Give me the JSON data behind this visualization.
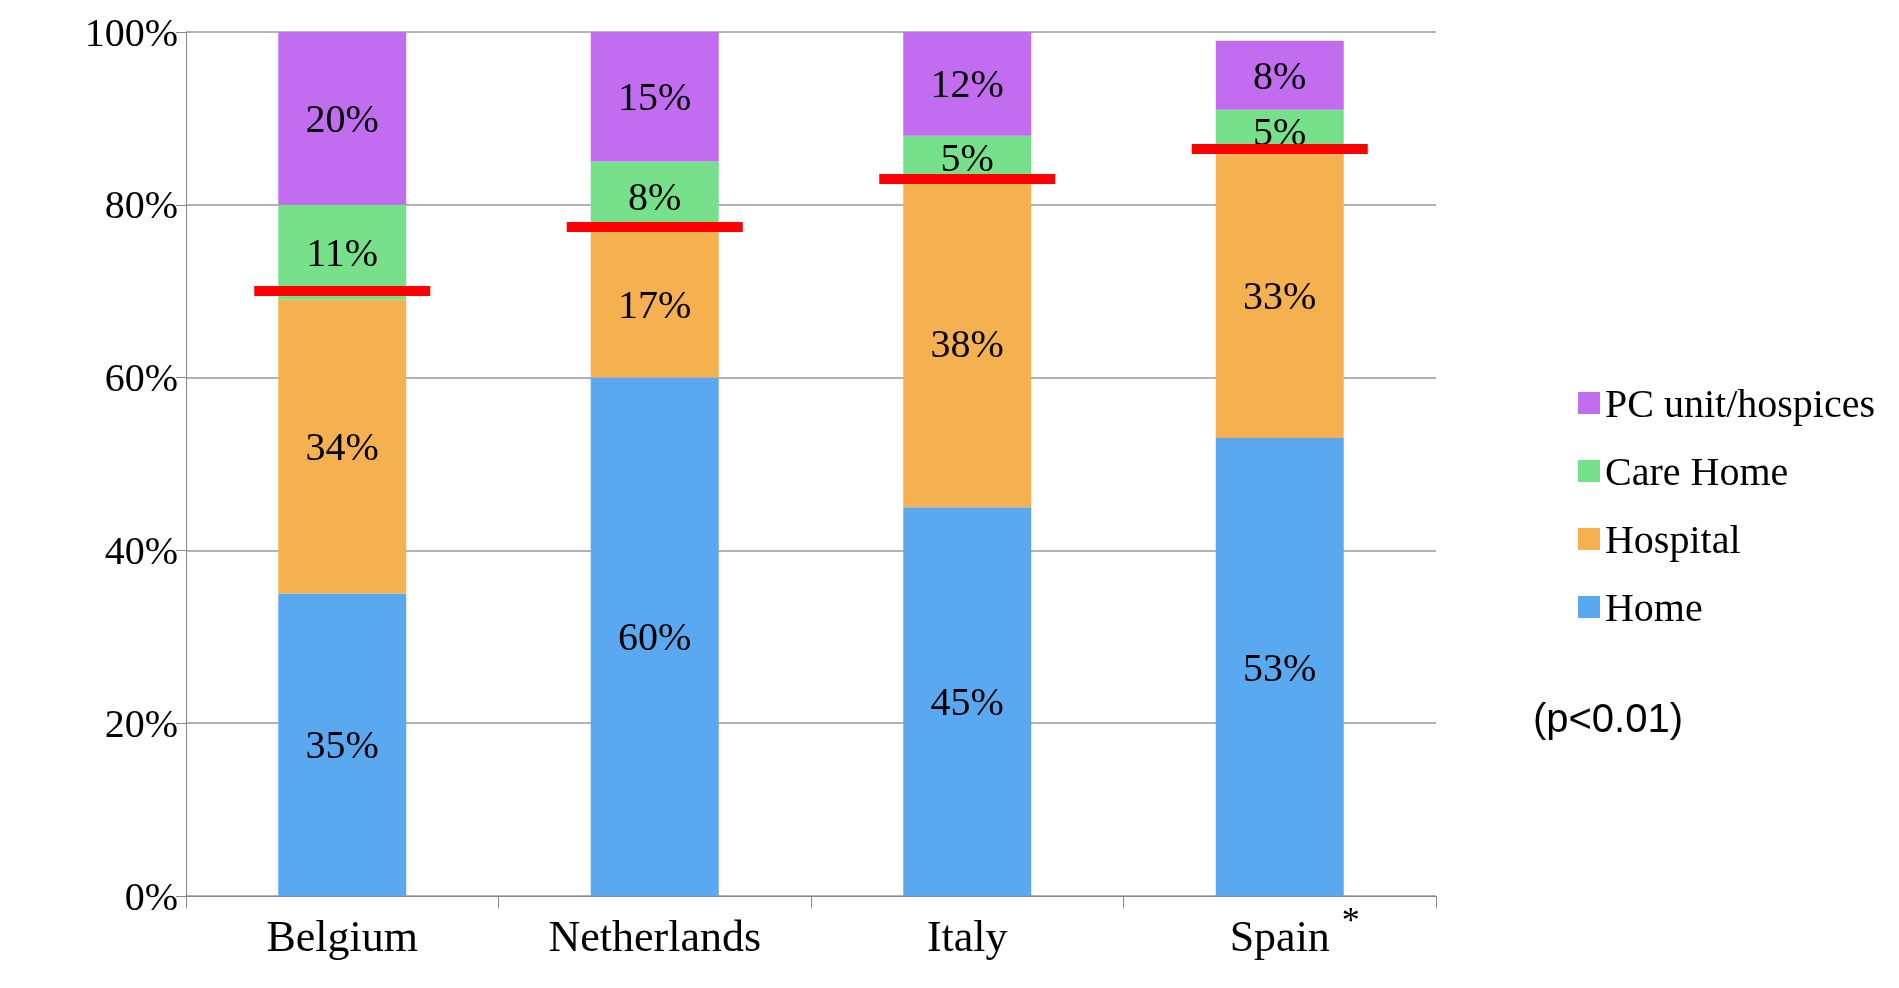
{
  "chart_data": {
    "type": "bar",
    "stacked": true,
    "categories": [
      "Belgium",
      "Netherlands",
      "Italy",
      "Spain"
    ],
    "ylim": [
      0,
      100
    ],
    "yticks": [
      {
        "value": 0,
        "label": "0%"
      },
      {
        "value": 20,
        "label": "20%"
      },
      {
        "value": 40,
        "label": "40%"
      },
      {
        "value": 60,
        "label": "60%"
      },
      {
        "value": 80,
        "label": "80%"
      },
      {
        "value": 100,
        "label": "100%"
      }
    ],
    "grid": "y",
    "legend": "right",
    "series": [
      {
        "name": "Home",
        "color": "#5aa9f0",
        "values": [
          35,
          60,
          45,
          53
        ],
        "value_labels": [
          "35%",
          "60%",
          "45%",
          "53%"
        ]
      },
      {
        "name": "Hospital",
        "color": "#f5b04f",
        "values": [
          34,
          17,
          38,
          33
        ],
        "value_labels": [
          "34%",
          "17%",
          "38%",
          "33%"
        ]
      },
      {
        "name": "Care Home",
        "color": "#77e08a",
        "values": [
          11,
          8,
          5,
          5
        ],
        "value_labels": [
          "11%",
          "8%",
          "5%",
          "5%"
        ]
      },
      {
        "name": "PC unit/hospices",
        "color": "#c26cf0",
        "values": [
          20,
          15,
          12,
          8
        ],
        "value_labels": [
          "20%",
          "15%",
          "12%",
          "8%"
        ]
      }
    ],
    "ref_lines": [
      {
        "axis": "y",
        "value": 70,
        "color": "#ff0000"
      },
      {
        "axis": "y",
        "value": 77.5,
        "color": "#ff0000"
      },
      {
        "axis": "y",
        "value": 83,
        "color": "#ff0000"
      },
      {
        "axis": "y",
        "value": 86.5,
        "color": "#ff0000"
      }
    ],
    "annotations": [
      "(p<0.01)",
      {
        "text": "*",
        "x": "Spain",
        "y": 0
      }
    ]
  }
}
